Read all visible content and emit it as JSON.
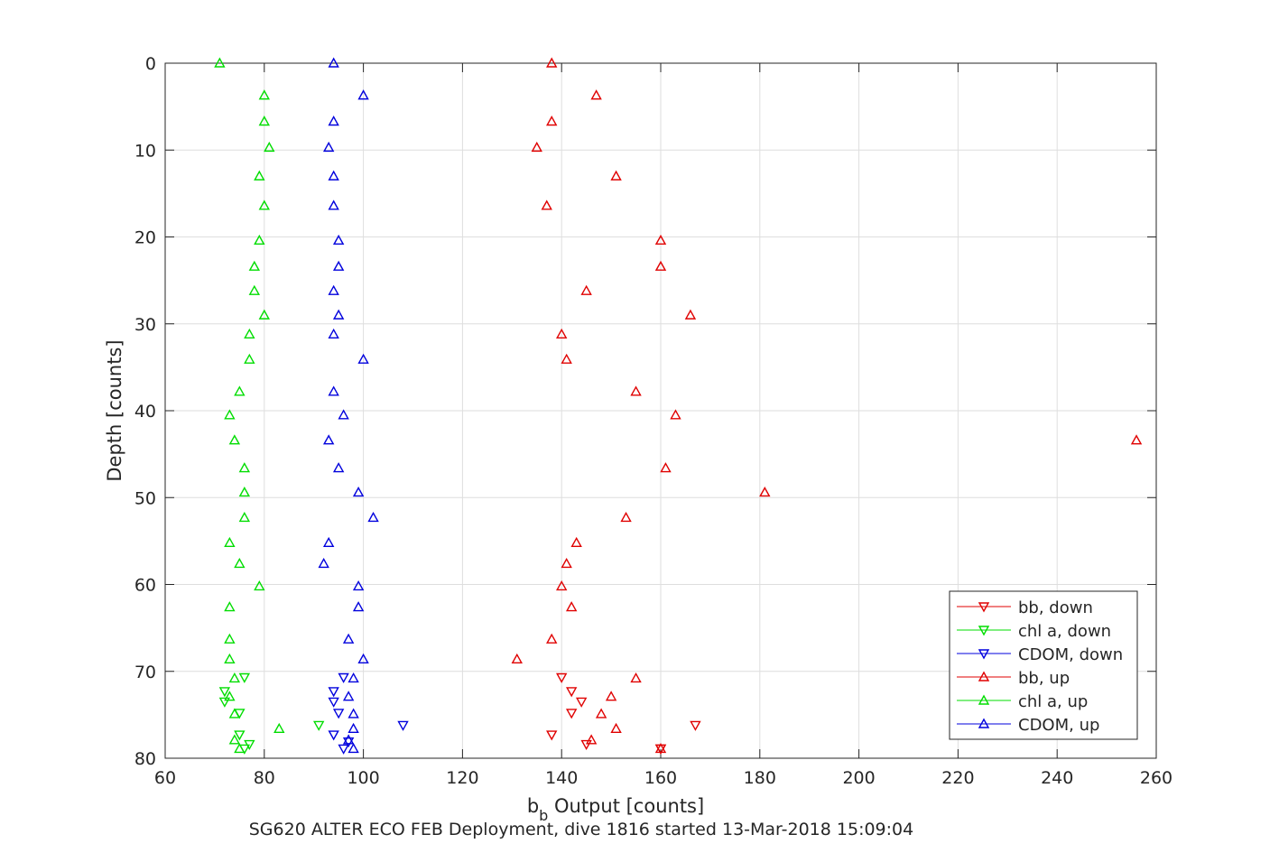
{
  "chart_data": {
    "type": "scatter",
    "xlabel_main": "b",
    "xlabel_sub": "b",
    "xlabel_rest": " Output [counts]",
    "ylabel": "Depth [counts]",
    "caption": "SG620 ALTER ECO FEB Deployment, dive 1816 started 13-Mar-2018 15:09:04",
    "xlim": [
      60,
      260
    ],
    "ylim": [
      0,
      80
    ],
    "y_reversed": true,
    "grid": true,
    "xticks": [
      60,
      80,
      100,
      120,
      140,
      160,
      180,
      200,
      220,
      240,
      260
    ],
    "yticks": [
      0,
      10,
      20,
      30,
      40,
      50,
      60,
      70,
      80
    ],
    "legend_position": "bottom-right",
    "series": [
      {
        "name": "bb, down",
        "color": "#e00000",
        "marker": "triangle-down",
        "points": [
          [
            140,
            70.7
          ],
          [
            142,
            72.3
          ],
          [
            144,
            73.5
          ],
          [
            142,
            74.8
          ],
          [
            167,
            76.2
          ],
          [
            138,
            77.3
          ],
          [
            145,
            78.4
          ],
          [
            160,
            78.9
          ],
          [
            160,
            78.9
          ]
        ]
      },
      {
        "name": "chl a, down",
        "color": "#00dd00",
        "marker": "triangle-down",
        "points": [
          [
            76,
            70.7
          ],
          [
            72,
            72.3
          ],
          [
            72,
            73.5
          ],
          [
            75,
            74.8
          ],
          [
            91,
            76.2
          ],
          [
            75,
            77.3
          ],
          [
            77,
            78.4
          ],
          [
            76,
            78.9
          ]
        ]
      },
      {
        "name": "CDOM, down",
        "color": "#0000dd",
        "marker": "triangle-down",
        "points": [
          [
            96,
            70.7
          ],
          [
            94,
            72.3
          ],
          [
            94,
            73.5
          ],
          [
            95,
            74.8
          ],
          [
            108,
            76.2
          ],
          [
            94,
            77.3
          ],
          [
            97,
            78.1
          ],
          [
            96,
            78.9
          ]
        ]
      },
      {
        "name": "bb, up",
        "color": "#e00000",
        "marker": "triangle-up",
        "points": [
          [
            138,
            0
          ],
          [
            147,
            3.7
          ],
          [
            138,
            6.7
          ],
          [
            135,
            9.7
          ],
          [
            151,
            13
          ],
          [
            137,
            16.4
          ],
          [
            160,
            20.4
          ],
          [
            160,
            23.4
          ],
          [
            145,
            26.2
          ],
          [
            166,
            29
          ],
          [
            140,
            31.2
          ],
          [
            141,
            34.1
          ],
          [
            155,
            37.8
          ],
          [
            163,
            40.5
          ],
          [
            256,
            43.4
          ],
          [
            161,
            46.6
          ],
          [
            181,
            49.4
          ],
          [
            153,
            52.3
          ],
          [
            143,
            55.2
          ],
          [
            141,
            57.6
          ],
          [
            140,
            60.2
          ],
          [
            142,
            62.6
          ],
          [
            138,
            66.3
          ],
          [
            131,
            68.6
          ],
          [
            155,
            70.8
          ],
          [
            150,
            72.9
          ],
          [
            148,
            74.9
          ],
          [
            151,
            76.6
          ],
          [
            146,
            77.9
          ],
          [
            160,
            78.9
          ]
        ]
      },
      {
        "name": "chl a, up",
        "color": "#00dd00",
        "marker": "triangle-up",
        "points": [
          [
            71,
            0
          ],
          [
            80,
            3.7
          ],
          [
            80,
            6.7
          ],
          [
            81,
            9.7
          ],
          [
            79,
            13
          ],
          [
            80,
            16.4
          ],
          [
            79,
            20.4
          ],
          [
            78,
            23.4
          ],
          [
            78,
            26.2
          ],
          [
            80,
            29
          ],
          [
            77,
            31.2
          ],
          [
            77,
            34.1
          ],
          [
            75,
            37.8
          ],
          [
            73,
            40.5
          ],
          [
            74,
            43.4
          ],
          [
            76,
            46.6
          ],
          [
            76,
            49.4
          ],
          [
            76,
            52.3
          ],
          [
            73,
            55.2
          ],
          [
            75,
            57.6
          ],
          [
            79,
            60.2
          ],
          [
            73,
            62.6
          ],
          [
            73,
            66.3
          ],
          [
            73,
            68.6
          ],
          [
            74,
            70.8
          ],
          [
            73,
            72.9
          ],
          [
            74,
            74.9
          ],
          [
            83,
            76.6
          ],
          [
            74,
            77.9
          ],
          [
            75,
            78.9
          ]
        ]
      },
      {
        "name": "CDOM, up",
        "color": "#0000dd",
        "marker": "triangle-up",
        "points": [
          [
            94,
            0
          ],
          [
            100,
            3.7
          ],
          [
            94,
            6.7
          ],
          [
            93,
            9.7
          ],
          [
            94,
            13
          ],
          [
            94,
            16.4
          ],
          [
            95,
            20.4
          ],
          [
            95,
            23.4
          ],
          [
            94,
            26.2
          ],
          [
            95,
            29
          ],
          [
            94,
            31.2
          ],
          [
            100,
            34.1
          ],
          [
            94,
            37.8
          ],
          [
            96,
            40.5
          ],
          [
            93,
            43.4
          ],
          [
            95,
            46.6
          ],
          [
            99,
            49.4
          ],
          [
            102,
            52.3
          ],
          [
            93,
            55.2
          ],
          [
            92,
            57.6
          ],
          [
            99,
            60.2
          ],
          [
            99,
            62.6
          ],
          [
            97,
            66.3
          ],
          [
            100,
            68.6
          ],
          [
            98,
            70.8
          ],
          [
            97,
            72.9
          ],
          [
            98,
            74.9
          ],
          [
            98,
            76.6
          ],
          [
            97,
            77.9
          ],
          [
            98,
            78.9
          ]
        ]
      }
    ]
  }
}
